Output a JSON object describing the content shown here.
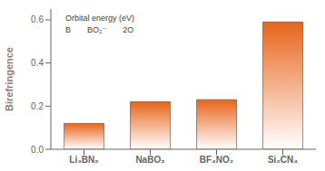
{
  "chart_data": {
    "type": "bar",
    "categories": [
      "Li₃BN₂",
      "NaBO₂",
      "BF₄NO₂",
      "Si₂CN₄"
    ],
    "values": [
      0.12,
      0.22,
      0.23,
      0.59
    ],
    "color": "#E8651A",
    "ylabel": "Birefringence",
    "ylim": [
      0,
      0.65
    ],
    "yticks": [
      {
        "value": 0,
        "label": "0.0"
      },
      0.2,
      0.4,
      0.6
    ],
    "grid": false,
    "annotations": [
      "B",
      "BO₂⁻",
      "2O",
      "Orbital energy (eV)"
    ]
  }
}
